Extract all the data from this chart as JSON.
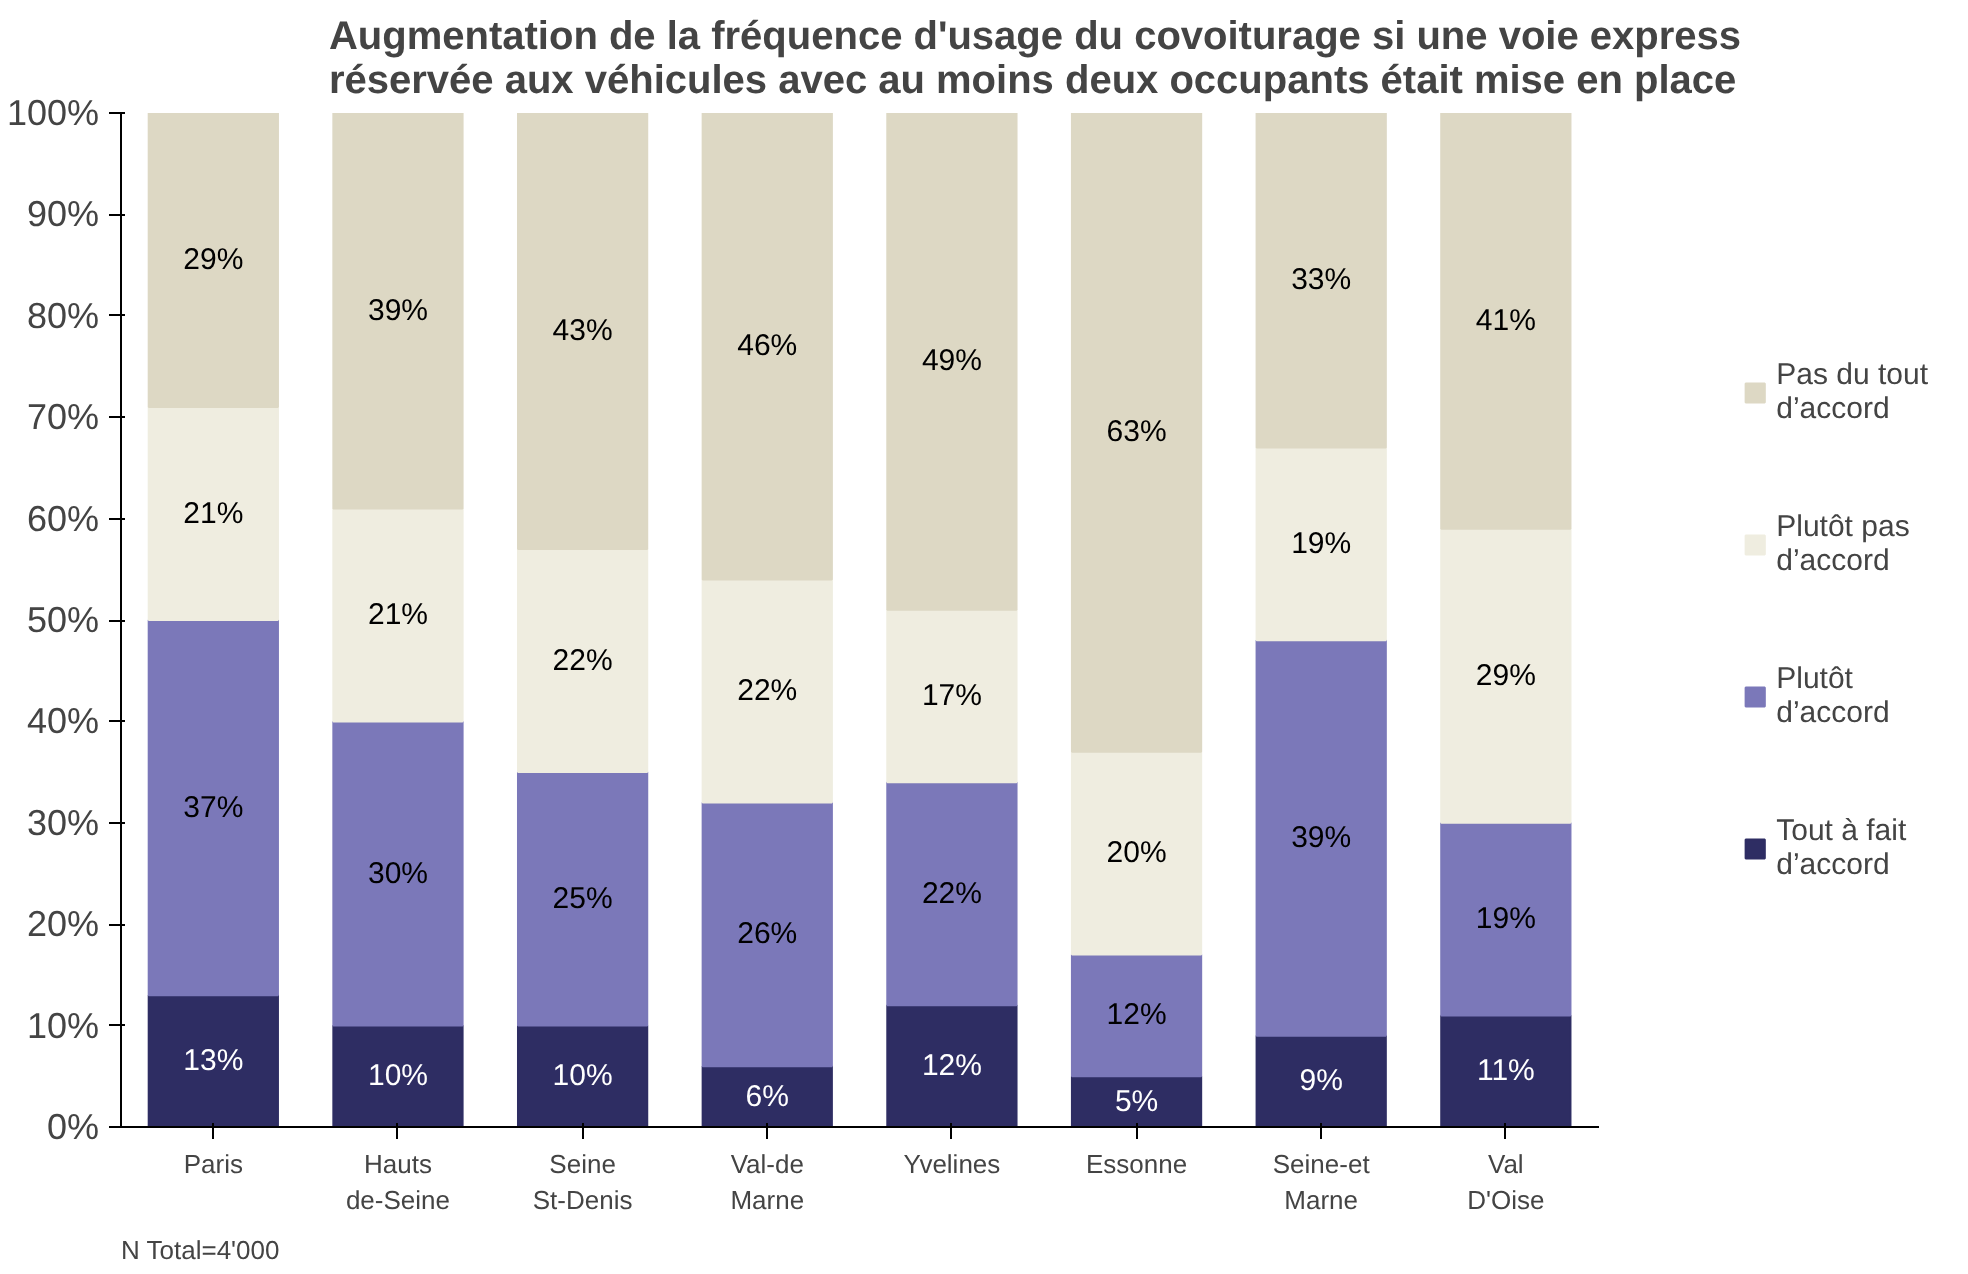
{
  "chart_data": {
    "type": "bar",
    "stacked": true,
    "title": "Augmentation de la fréquence d'usage du covoiturage si une voie express\nréservée aux véhicules avec au moins deux occupants était mise en place",
    "categories": [
      "Paris",
      "Hauts\nde-Seine",
      "Seine\nSt-Denis",
      "Val-de\nMarne",
      "Yvelines",
      "Essonne",
      "Seine-et\nMarne",
      "Val\nD'Oise"
    ],
    "series": [
      {
        "name": "Tout à fait\nd’accord",
        "color": "#2e2d63",
        "values": [
          13,
          10,
          10,
          6,
          12,
          5,
          9,
          11
        ],
        "value_labels": [
          "13%",
          "10%",
          "10%",
          "6%",
          "12%",
          "5%",
          "9%",
          "11%"
        ]
      },
      {
        "name": "Plutôt\nd’accord",
        "color": "#7b78b9",
        "values": [
          37,
          30,
          25,
          26,
          22,
          12,
          39,
          19
        ],
        "value_labels": [
          "37%",
          "30%",
          "25%",
          "26%",
          "22%",
          "12%",
          "39%",
          "19%"
        ]
      },
      {
        "name": "Plutôt pas\nd’accord",
        "color": "#efede0",
        "values": [
          21,
          21,
          22,
          22,
          17,
          20,
          19,
          29
        ],
        "value_labels": [
          "21%",
          "21%",
          "22%",
          "22%",
          "17%",
          "20%",
          "19%",
          "29%"
        ]
      },
      {
        "name": "Pas du tout\nd’accord",
        "color": "#ddd8c4",
        "values": [
          29,
          39,
          43,
          46,
          49,
          63,
          33,
          41
        ],
        "value_labels": [
          "29%",
          "39%",
          "43%",
          "46%",
          "49%",
          "63%",
          "33%",
          "41%"
        ]
      }
    ],
    "ylim": [
      0,
      100
    ],
    "yticks": [
      {
        "value": 0,
        "label": "0%"
      },
      {
        "value": 10,
        "label": "10%"
      },
      {
        "value": 20,
        "label": "20%"
      },
      {
        "value": 30,
        "label": "30%"
      },
      {
        "value": 40,
        "label": "40%"
      },
      {
        "value": 50,
        "label": "50%"
      },
      {
        "value": 60,
        "label": "60%"
      },
      {
        "value": 70,
        "label": "70%"
      },
      {
        "value": 80,
        "label": "80%"
      },
      {
        "value": 90,
        "label": "90%"
      },
      {
        "value": 100,
        "label": "100%"
      }
    ],
    "grid": false,
    "legend": "right",
    "annotations": [
      "N Total=4'000"
    ]
  }
}
